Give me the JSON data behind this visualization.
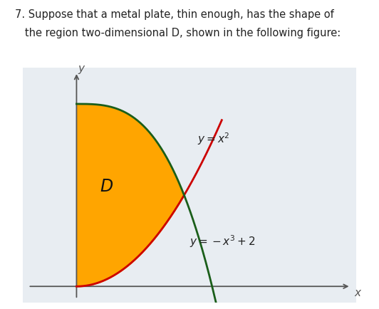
{
  "fill_color": "#FFA500",
  "fill_alpha": 1.0,
  "curve_parab_color": "#CC0000",
  "curve_cubic_color": "#1a5e1a",
  "curve1_label": "$y = x^2$",
  "curve2_label": "$y = -x^3 + 2$",
  "label_color": "#222222",
  "D_label": "$D$",
  "axis_color": "#555555",
  "background_color": "#ffffff",
  "plot_bg_color": "#e8edf2",
  "xlim": [
    -0.5,
    2.6
  ],
  "ylim": [
    -0.18,
    2.4
  ],
  "x_intersect": 1.0,
  "title_line1": "7. Suppose that a metal plate, thin enough, has the shape of",
  "title_line2": "   the region two-dimensional D, shown in the following figure:",
  "title_fontsize": 10.5
}
